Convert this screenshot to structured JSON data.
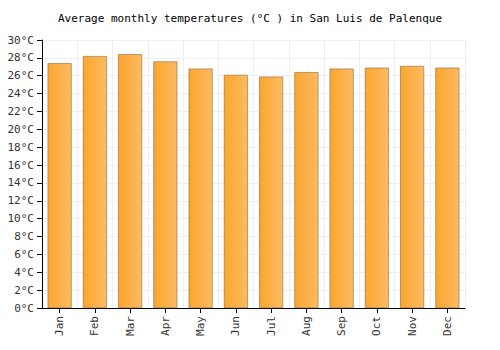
{
  "chart_data": {
    "type": "bar",
    "title": "Average monthly temperatures (°C ) in San Luis de Palenque",
    "categories": [
      "Jan",
      "Feb",
      "Mar",
      "Apr",
      "May",
      "Jun",
      "Jul",
      "Aug",
      "Sep",
      "Oct",
      "Nov",
      "Dec"
    ],
    "values": [
      27.4,
      28.2,
      28.4,
      27.6,
      26.8,
      26.1,
      25.9,
      26.4,
      26.8,
      26.9,
      27.1,
      26.9
    ],
    "color": "#fca52e",
    "ylim": [
      0,
      30
    ],
    "yticks": [
      {
        "value": 0,
        "label": "0°C"
      },
      {
        "value": 2,
        "label": "2°C"
      },
      {
        "value": 4,
        "label": "4°C"
      },
      {
        "value": 6,
        "label": "6°C"
      },
      {
        "value": 8,
        "label": "8°C"
      },
      {
        "value": 10,
        "label": "10°C"
      },
      {
        "value": 12,
        "label": "12°C"
      },
      {
        "value": 14,
        "label": "14°C"
      },
      {
        "value": 16,
        "label": "16°C"
      },
      {
        "value": 18,
        "label": "18°C"
      },
      {
        "value": 20,
        "label": "20°C"
      },
      {
        "value": 22,
        "label": "22°C"
      },
      {
        "value": 24,
        "label": "24°C"
      },
      {
        "value": 26,
        "label": "26°C"
      },
      {
        "value": 28,
        "label": "28°C"
      },
      {
        "value": 30,
        "label": "30°C"
      }
    ],
    "grid": true
  }
}
